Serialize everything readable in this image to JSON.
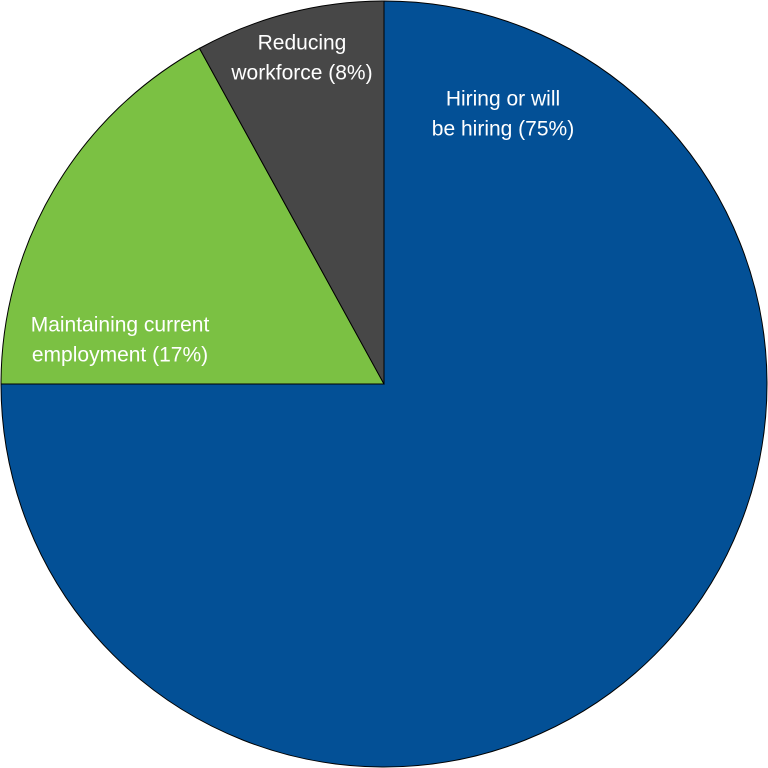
{
  "chart_data": {
    "type": "pie",
    "categories": [
      [
        "Hiring or will",
        "be hiring (75%)"
      ],
      [
        "Maintaining current",
        "employment (17%)"
      ],
      [
        "Reducing",
        "workforce (8%)"
      ]
    ],
    "values": [
      75,
      17,
      8
    ],
    "colors": [
      "#035096",
      "#7bc143",
      "#474747"
    ]
  }
}
